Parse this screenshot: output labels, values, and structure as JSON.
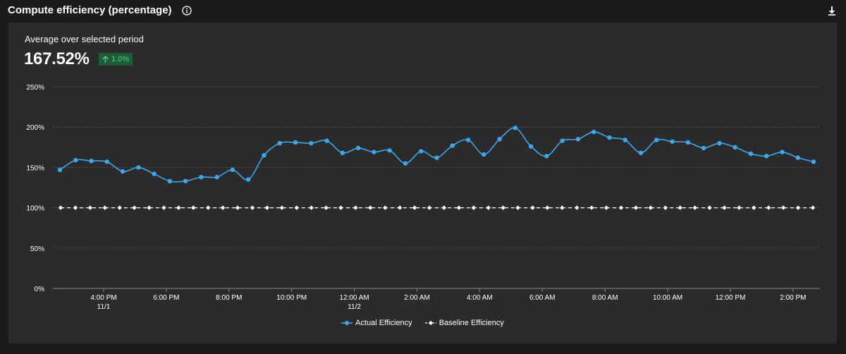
{
  "header": {
    "title": "Compute efficiency (percentage)",
    "info_icon": "info-icon",
    "download_icon": "download-icon"
  },
  "summary": {
    "label": "Average over selected period",
    "value": "167.52%",
    "delta": "1.0%",
    "delta_direction": "up"
  },
  "colors": {
    "actual": "#3aa8ee",
    "baseline": "#ffffff",
    "grid": "#5a5a5a",
    "positive_bg": "#1d5c36",
    "positive_text": "#52d37f"
  },
  "chart_data": {
    "type": "line",
    "y_ticks": [
      "0%",
      "50%",
      "100%",
      "150%",
      "200%",
      "250%"
    ],
    "ylim": [
      0,
      250
    ],
    "x_ticks": [
      {
        "label": "4:00 PM",
        "sub": "11/1"
      },
      {
        "label": "6:00 PM",
        "sub": ""
      },
      {
        "label": "8:00 PM",
        "sub": ""
      },
      {
        "label": "10:00 PM",
        "sub": ""
      },
      {
        "label": "12:00 AM",
        "sub": "11/2"
      },
      {
        "label": "2:00 AM",
        "sub": ""
      },
      {
        "label": "4:00 AM",
        "sub": ""
      },
      {
        "label": "6:00 AM",
        "sub": ""
      },
      {
        "label": "8:00 AM",
        "sub": ""
      },
      {
        "label": "10:00 AM",
        "sub": ""
      },
      {
        "label": "12:00 PM",
        "sub": ""
      },
      {
        "label": "2:00 PM",
        "sub": ""
      }
    ],
    "grid": true,
    "legend_position": "bottom-center",
    "series": [
      {
        "name": "Actual Efficiency",
        "values": [
          147,
          159,
          158,
          157,
          145,
          150,
          142,
          133,
          133,
          138,
          138,
          147,
          135,
          165,
          180,
          181,
          180,
          183,
          168,
          174,
          169,
          171,
          155,
          170,
          162,
          177,
          184,
          166,
          185,
          199,
          176,
          164,
          183,
          185,
          194,
          187,
          184,
          168,
          184,
          182,
          181,
          174,
          180,
          175,
          167,
          164,
          169,
          162,
          157
        ]
      },
      {
        "name": "Baseline Efficiency",
        "values": [
          100,
          100,
          100,
          100,
          100,
          100,
          100,
          100,
          100,
          100,
          100,
          100,
          100,
          100,
          100,
          100,
          100,
          100,
          100,
          100,
          100,
          100,
          100,
          100,
          100,
          100,
          100,
          100,
          100,
          100,
          100,
          100,
          100,
          100,
          100,
          100,
          100,
          100,
          100,
          100,
          100,
          100,
          100,
          100,
          100,
          100,
          100,
          100,
          100,
          100,
          100,
          100
        ]
      }
    ]
  }
}
